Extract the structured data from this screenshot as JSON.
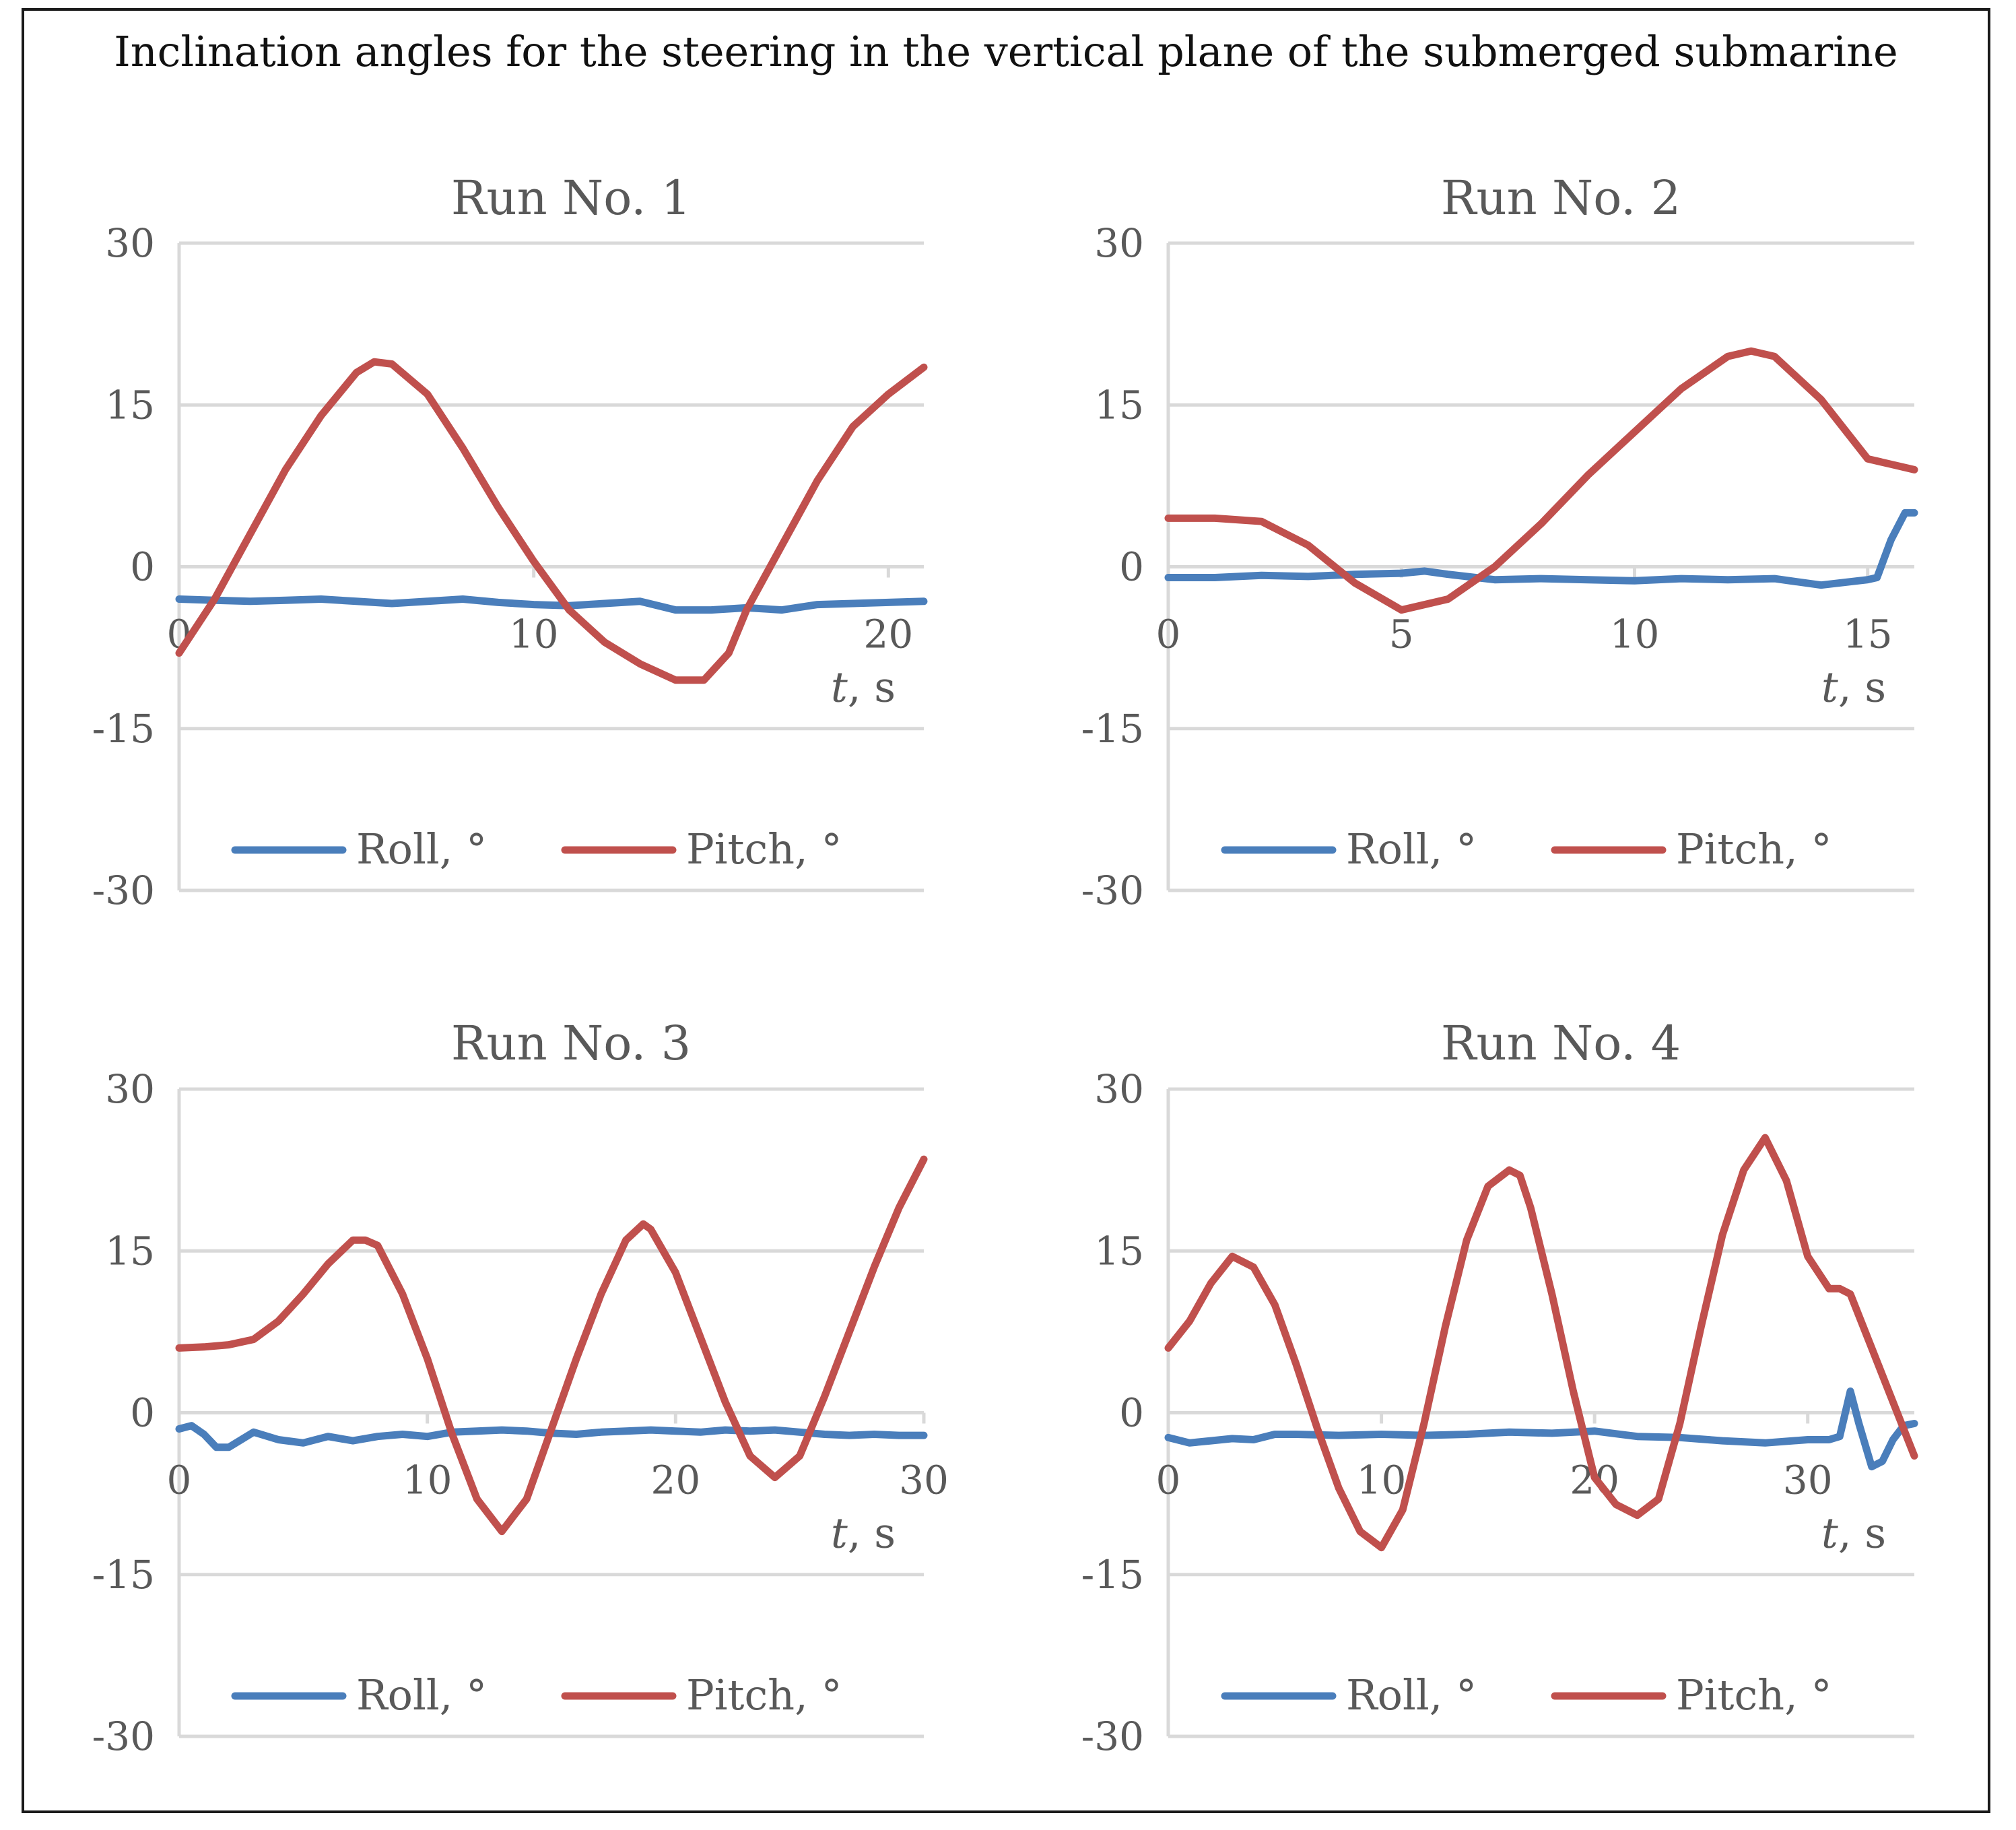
{
  "figure_title": "Inclination angles for the steering in the vertical plane of the submerged submarine",
  "colors": {
    "roll": "#4a7ebb",
    "pitch": "#c0504d",
    "grid": "#d9d9d9",
    "text": "#595959",
    "border": "#1a1a1a"
  },
  "chart_data": [
    {
      "type": "line",
      "title": "Run No. 1",
      "xlabel_italic": "t",
      "xlabel_rest": ", s",
      "ylabel": "",
      "xlim": [
        0,
        21
      ],
      "ylim": [
        -30,
        30
      ],
      "y_ticks": [
        "30",
        "15",
        "0",
        "-15",
        "-30"
      ],
      "y_tick_values": [
        30,
        15,
        0,
        -15,
        -30
      ],
      "x_ticks": [
        "0",
        "10",
        "20"
      ],
      "x_tick_values": [
        0,
        10,
        20
      ],
      "legend": [
        "Roll, °",
        "Pitch, °"
      ],
      "series": [
        {
          "name": "Roll, °",
          "color": "#4a7ebb",
          "x": [
            0,
            1,
            2,
            3,
            4,
            5,
            6,
            7,
            8,
            9,
            10,
            11,
            12,
            13,
            14,
            15,
            16,
            17,
            18,
            19,
            20,
            21
          ],
          "y": [
            -3,
            -3.1,
            -3.2,
            -3.1,
            -3,
            -3.2,
            -3.4,
            -3.2,
            -3,
            -3.3,
            -3.5,
            -3.6,
            -3.4,
            -3.2,
            -4,
            -4,
            -3.8,
            -4,
            -3.5,
            -3.4,
            -3.3,
            -3.2
          ]
        },
        {
          "name": "Pitch, °",
          "color": "#c0504d",
          "x": [
            0,
            1,
            2,
            3,
            4,
            5,
            5.5,
            6,
            7,
            8,
            9,
            10,
            11,
            12,
            13,
            14,
            14.8,
            15.5,
            16,
            17,
            18,
            19,
            20,
            21
          ],
          "y": [
            -8,
            -3,
            3,
            9,
            14,
            18,
            19,
            18.8,
            16,
            11,
            5.5,
            0.5,
            -4,
            -7,
            -9,
            -10.5,
            -10.5,
            -8,
            -4,
            2,
            8,
            13,
            16,
            18.5
          ]
        }
      ]
    },
    {
      "type": "line",
      "title": "Run No. 2",
      "xlabel_italic": "t",
      "xlabel_rest": ", s",
      "ylabel": "",
      "xlim": [
        0,
        16
      ],
      "ylim": [
        -30,
        30
      ],
      "y_ticks": [
        "30",
        "15",
        "0",
        "-15",
        "-30"
      ],
      "y_tick_values": [
        30,
        15,
        0,
        -15,
        -30
      ],
      "x_ticks": [
        "0",
        "5",
        "10",
        "15"
      ],
      "x_tick_values": [
        0,
        5,
        10,
        15
      ],
      "legend": [
        "Roll, °",
        "Pitch, °"
      ],
      "series": [
        {
          "name": "Roll, °",
          "color": "#4a7ebb",
          "x": [
            0,
            1,
            2,
            3,
            4,
            5,
            5.5,
            6,
            7,
            8,
            9,
            10,
            11,
            12,
            13,
            14,
            15,
            15.2,
            15.5,
            15.8,
            16
          ],
          "y": [
            -1,
            -1,
            -0.8,
            -0.9,
            -0.7,
            -0.6,
            -0.4,
            -0.7,
            -1.2,
            -1.1,
            -1.2,
            -1.3,
            -1.1,
            -1.2,
            -1.1,
            -1.7,
            -1.2,
            -1,
            2.5,
            5,
            5
          ]
        },
        {
          "name": "Pitch, °",
          "color": "#c0504d",
          "x": [
            0,
            1,
            2,
            3,
            4,
            5,
            6,
            7,
            8,
            9,
            10,
            11,
            12,
            12.5,
            13,
            14,
            15,
            15.5,
            16
          ],
          "y": [
            4.5,
            4.5,
            4.2,
            2,
            -1.5,
            -4,
            -3,
            0,
            4,
            8.5,
            12.5,
            16.5,
            19.5,
            20,
            19.5,
            15.5,
            10,
            9.5,
            9
          ]
        }
      ]
    },
    {
      "type": "line",
      "title": "Run No. 3",
      "xlabel_italic": "t",
      "xlabel_rest": ", s",
      "ylabel": "",
      "xlim": [
        0,
        30
      ],
      "ylim": [
        -30,
        30
      ],
      "y_ticks": [
        "30",
        "15",
        "0",
        "-15",
        "-30"
      ],
      "y_tick_values": [
        30,
        15,
        0,
        -15,
        -30
      ],
      "x_ticks": [
        "0",
        "10",
        "20",
        "30"
      ],
      "x_tick_values": [
        0,
        10,
        20,
        30
      ],
      "legend": [
        "Roll, °",
        "Pitch, °"
      ],
      "series": [
        {
          "name": "Roll, °",
          "color": "#4a7ebb",
          "x": [
            0,
            0.5,
            1,
            1.5,
            2,
            3,
            4,
            5,
            6,
            7,
            8,
            9,
            10,
            11,
            12,
            13,
            14,
            15,
            16,
            17,
            18,
            19,
            20,
            21,
            22,
            23,
            24,
            25,
            26,
            27,
            28,
            29,
            30
          ],
          "y": [
            -1.5,
            -1.2,
            -2,
            -3.2,
            -3.2,
            -1.8,
            -2.5,
            -2.8,
            -2.2,
            -2.6,
            -2.2,
            -2,
            -2.2,
            -1.8,
            -1.7,
            -1.6,
            -1.7,
            -1.9,
            -2,
            -1.8,
            -1.7,
            -1.6,
            -1.7,
            -1.8,
            -1.6,
            -1.7,
            -1.6,
            -1.8,
            -2,
            -2.1,
            -2,
            -2.1,
            -2.1
          ]
        },
        {
          "name": "Pitch, °",
          "color": "#c0504d",
          "x": [
            0,
            1,
            2,
            3,
            4,
            5,
            6,
            7,
            7.5,
            8,
            9,
            10,
            11,
            12,
            13,
            14,
            15,
            16,
            17,
            18,
            18.7,
            19,
            20,
            21,
            22,
            23,
            24,
            25,
            26,
            27,
            28,
            29,
            30
          ],
          "y": [
            6,
            6.1,
            6.3,
            6.8,
            8.5,
            11,
            13.8,
            16,
            16,
            15.5,
            11,
            5,
            -2,
            -8,
            -11,
            -8,
            -1.5,
            5,
            11,
            16,
            17.5,
            17,
            13,
            7,
            1,
            -4,
            -6,
            -4,
            1.5,
            7.5,
            13.5,
            19,
            23.5
          ]
        }
      ]
    },
    {
      "type": "line",
      "title": "Run No. 4",
      "xlabel_italic": "t",
      "xlabel_rest": ", s",
      "ylabel": "",
      "xlim": [
        0,
        35
      ],
      "ylim": [
        -30,
        30
      ],
      "y_ticks": [
        "30",
        "15",
        "0",
        "-15",
        "-30"
      ],
      "y_tick_values": [
        30,
        15,
        0,
        -15,
        -30
      ],
      "x_ticks": [
        "0",
        "10",
        "20",
        "30"
      ],
      "x_tick_values": [
        0,
        10,
        20,
        30
      ],
      "legend": [
        "Roll, °",
        "Pitch, °"
      ],
      "series": [
        {
          "name": "Roll, °",
          "color": "#4a7ebb",
          "x": [
            0,
            1,
            2,
            3,
            4,
            5,
            6,
            8,
            10,
            12,
            14,
            16,
            18,
            20,
            22,
            24,
            26,
            28,
            30,
            31,
            31.5,
            32,
            32.4,
            33,
            33.5,
            34,
            34.5,
            35
          ],
          "y": [
            -2.3,
            -2.8,
            -2.6,
            -2.4,
            -2.5,
            -2,
            -2,
            -2.1,
            -2,
            -2.1,
            -2,
            -1.8,
            -1.9,
            -1.7,
            -2.2,
            -2.3,
            -2.6,
            -2.8,
            -2.5,
            -2.5,
            -2.2,
            2,
            -1,
            -5,
            -4.5,
            -2.5,
            -1.2,
            -1
          ]
        },
        {
          "name": "Pitch, °",
          "color": "#c0504d",
          "x": [
            0,
            1,
            2,
            3,
            4,
            5,
            6,
            7,
            8,
            9,
            10,
            11,
            12,
            13,
            14,
            15,
            16,
            16.5,
            17,
            18,
            19,
            20,
            21,
            22,
            23,
            24,
            25,
            26,
            27,
            28,
            29,
            30,
            31,
            31.5,
            32,
            33,
            34,
            35
          ],
          "y": [
            6,
            8.5,
            12,
            14.5,
            13.5,
            10,
            4.5,
            -1.5,
            -7,
            -11,
            -12.5,
            -9,
            -1,
            8,
            16,
            21,
            22.5,
            22,
            19,
            11,
            2,
            -6,
            -8.5,
            -9.5,
            -8,
            -1,
            8,
            16.5,
            22.5,
            25.5,
            21.5,
            14.5,
            11.5,
            11.5,
            11,
            6,
            1,
            -4
          ]
        }
      ]
    }
  ]
}
